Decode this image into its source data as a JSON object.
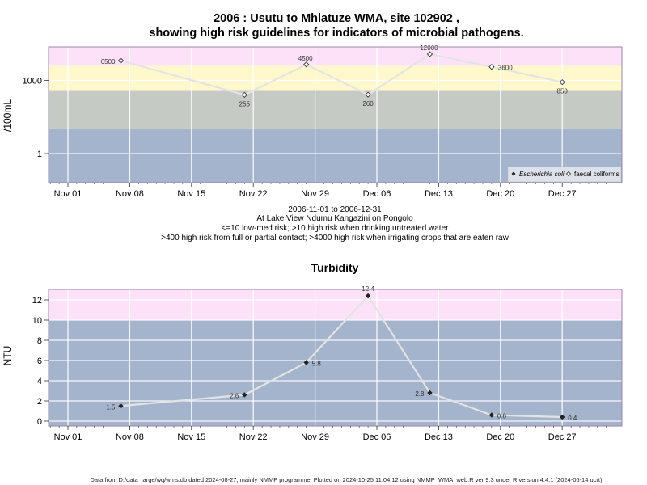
{
  "chart_data": [
    {
      "type": "scatter",
      "title_line1": "2006 : Usutu to Mhlatuze WMA, site 102902 ,",
      "title_line2": "showing high risk guidelines for indicators of microbial pathogens.",
      "ylabel": "/100mL",
      "y_scale": "log",
      "ytick_labels": [
        "1",
        "1000"
      ],
      "xtick_labels": [
        "Nov 01",
        "Nov 08",
        "Nov 15",
        "Nov 22",
        "Nov 29",
        "Dec 06",
        "Dec 13",
        "Dec 20",
        "Dec 27"
      ],
      "xtick_dates": [
        "2006-11-01",
        "2006-11-08",
        "2006-11-15",
        "2006-11-22",
        "2006-11-29",
        "2006-12-06",
        "2006-12-13",
        "2006-12-20",
        "2006-12-27"
      ],
      "bands": [
        {
          "from": 0.03,
          "to": 10,
          "color": "#a3b4cc"
        },
        {
          "from": 10,
          "to": 400,
          "color": "#c5cbc4"
        },
        {
          "from": 400,
          "to": 4000,
          "color": "#fef8cc"
        },
        {
          "from": 4000,
          "to": 30000,
          "color": "#fde1f8"
        }
      ],
      "series": [
        {
          "name": "faecal coliforms",
          "marker": "open-diamond",
          "points": [
            {
              "date": "2006-11-07",
              "value": 6500,
              "label": "6500"
            },
            {
              "date": "2006-11-21",
              "value": 255,
              "label": "255"
            },
            {
              "date": "2006-11-28",
              "value": 4500,
              "label": "4500"
            },
            {
              "date": "2006-12-05",
              "value": 260,
              "label": "260"
            },
            {
              "date": "2006-12-12",
              "value": 12000,
              "label": "12000"
            },
            {
              "date": "2006-12-19",
              "value": 3600,
              "label": "3600"
            },
            {
              "date": "2006-12-27",
              "value": 850,
              "label": "850"
            }
          ]
        }
      ],
      "legend": {
        "position": "bottom-right",
        "entries": [
          "Escherichia coli",
          "faecal coliforms"
        ]
      },
      "caption": [
        "2006-11-01 to 2006-12-31",
        "At Lake View Ndumu Kangazini on Pongolo",
        "<=10 low-med risk; >10 high risk when drinking untreated water",
        ">400 high risk from full or partial contact; >4000 high risk when irrigating crops that are eaten raw"
      ]
    },
    {
      "type": "line",
      "title": "Turbidity",
      "ylabel": "NTU",
      "ytick_labels": [
        "0",
        "2",
        "4",
        "6",
        "8",
        "10",
        "12"
      ],
      "yticks": [
        0,
        2,
        4,
        6,
        8,
        10,
        12
      ],
      "xtick_labels": [
        "Nov 01",
        "Nov 08",
        "Nov 15",
        "Nov 22",
        "Nov 29",
        "Dec 06",
        "Dec 13",
        "Dec 20",
        "Dec 27"
      ],
      "xtick_dates": [
        "2006-11-01",
        "2006-11-08",
        "2006-11-15",
        "2006-11-22",
        "2006-11-29",
        "2006-12-06",
        "2006-12-13",
        "2006-12-20",
        "2006-12-27"
      ],
      "bands": [
        {
          "from": -0.5,
          "to": 10,
          "color": "#a3b4cc"
        },
        {
          "from": 10,
          "to": 13,
          "color": "#fde1f8"
        }
      ],
      "points": [
        {
          "date": "2006-11-07",
          "value": 1.5,
          "label": "1.5"
        },
        {
          "date": "2006-11-21",
          "value": 2.6,
          "label": "2.6"
        },
        {
          "date": "2006-11-28",
          "value": 5.8,
          "label": "5.8"
        },
        {
          "date": "2006-12-05",
          "value": 12.4,
          "label": "12.4"
        },
        {
          "date": "2006-12-12",
          "value": 2.8,
          "label": "2.8"
        },
        {
          "date": "2006-12-19",
          "value": 0.6,
          "label": "0.6"
        },
        {
          "date": "2006-12-27",
          "value": 0.4,
          "label": "0.4"
        }
      ]
    }
  ],
  "footer": "Data from D:/data_large/wq/wms.db dated 2024-08-27, mainly NMMP programme. Plotted on 2024-10-25 11:04:12 using NMMP_WMA_web.R ver 9.3 under R version 4.4.1 (2024-06-14 ucrt)"
}
